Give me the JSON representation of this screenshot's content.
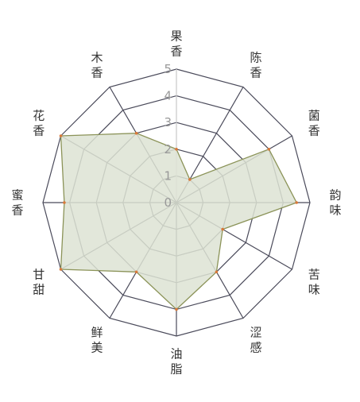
{
  "chart_data": {
    "type": "radar",
    "axes": [
      "果香",
      "陈香",
      "菌香",
      "韵味",
      "苦味",
      "涩感",
      "油脂",
      "鲜美",
      "甘甜",
      "蜜香",
      "花香",
      "木香"
    ],
    "ticks": [
      "0",
      "1",
      "2",
      "3",
      "4",
      "5"
    ],
    "rmax": 5,
    "series": [
      {
        "values": [
          2,
          1,
          4,
          4.5,
          2,
          3,
          4,
          3,
          5,
          4.2,
          5,
          3
        ],
        "fill": "#dde3d3",
        "stroke": "#8b9358",
        "point": "#d9793a"
      }
    ],
    "grid_color": "#4a4a5a",
    "axis_color": "#c8c8c8"
  }
}
